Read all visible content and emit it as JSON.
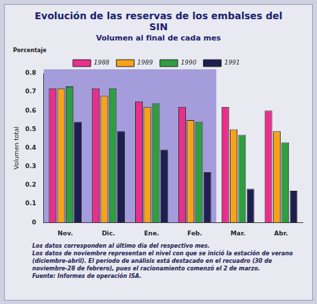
{
  "chart_data": {
    "type": "bar",
    "title": "Evolución de las reservas de los embalses del SIN",
    "subtitle": "Volumen al final de cada mes",
    "y_label": "Volumen total",
    "annotations": [
      "Porcentaje"
    ],
    "notes": [
      "Los datos corresponden al último día del respectivo mes.",
      "Los datos de noviembre representan el nivel con que se inició la estación de verano (diciembre-abril). El período de análisis está destacado en el recuadro (30 de noviembre-28 de febrero), pues el racionamiento comenzó el 2 de marzo.",
      "Fuente: Informes de operación ISA."
    ],
    "categories": [
      "Nov.",
      "Dic.",
      "Ene.",
      "Feb.",
      "Mar.",
      "Abr."
    ],
    "series": [
      {
        "name": "1988",
        "color": "#e8308a",
        "values": [
          0.72,
          0.72,
          0.65,
          0.62,
          0.62,
          0.6
        ]
      },
      {
        "name": "1989",
        "color": "#f7a21b",
        "values": [
          0.72,
          0.68,
          0.62,
          0.55,
          0.5,
          0.49
        ]
      },
      {
        "name": "1990",
        "color": "#2e9e3e",
        "values": [
          0.73,
          0.72,
          0.64,
          0.54,
          0.47,
          0.43
        ]
      },
      {
        "name": "1991",
        "color": "#1c1f4f",
        "values": [
          0.54,
          0.49,
          0.39,
          0.27,
          0.18,
          0.17
        ]
      }
    ],
    "ylim": [
      0,
      0.8
    ],
    "yticks": [
      0,
      0.1,
      0.2,
      0.3,
      0.4,
      0.5,
      0.6,
      0.7,
      0.8
    ],
    "grid": false,
    "legend": "top"
  }
}
